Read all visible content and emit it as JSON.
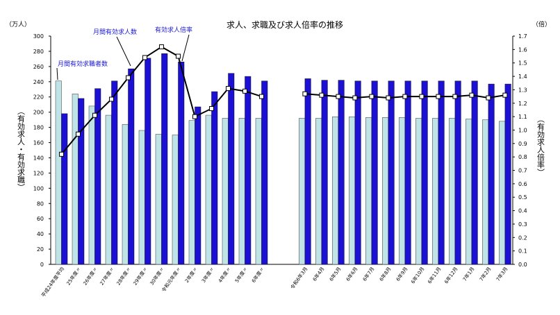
{
  "chart_data": {
    "type": "bar",
    "title": "求人、求職及び求人倍率の推移",
    "left_axis_unit": "（万人）",
    "right_axis_unit": "（倍）",
    "left_axis_label": "（有効求人・有効求職）",
    "right_axis_label": "（有効求人倍率）",
    "ylim_left": [
      0,
      300
    ],
    "ylim_right": [
      0,
      1.7
    ],
    "left_ticks": [
      "0",
      "20",
      "40",
      "60",
      "80",
      "100",
      "120",
      "140",
      "160",
      "180",
      "200",
      "220",
      "240",
      "260",
      "280",
      "300"
    ],
    "right_ticks": [
      "0.0",
      "0.1",
      "0.2",
      "0.3",
      "0.4",
      "0.5",
      "0.6",
      "0.7",
      "0.8",
      "0.9",
      "1.0",
      "1.1",
      "1.2",
      "1.3",
      "1.4",
      "1.5",
      "1.6",
      "1.7"
    ],
    "categories": [
      "平成24年度平均",
      "25年度〃",
      "26年度〃",
      "27年度〃",
      "28年度〃",
      "29年度〃",
      "30年度〃",
      "令和元年度〃",
      "2年度〃",
      "3年度〃",
      "4年度〃",
      "5年度〃",
      "6年度〃",
      "令和6年3月",
      "6年4月",
      "6年5月",
      "6年6月",
      "6年7月",
      "6年8月",
      "6年9月",
      "6年10月",
      "6年11月",
      "6年12月",
      "7年1月",
      "7年2月",
      "7年3月"
    ],
    "series": [
      {
        "name": "月間有効求職者数",
        "color": "#bfe3e6",
        "values": [
          241,
          224,
          208,
          196,
          184,
          176,
          171,
          170,
          189,
          196,
          192,
          192,
          192,
          192,
          192,
          194,
          194,
          193,
          193,
          193,
          192,
          192,
          192,
          191,
          190,
          188
        ]
      },
      {
        "name": "月間有効求人数",
        "color": "#1c10d4",
        "values": [
          198,
          218,
          231,
          241,
          257,
          271,
          277,
          266,
          207,
          227,
          251,
          247,
          241,
          244,
          242,
          242,
          241,
          241,
          241,
          241,
          241,
          241,
          241,
          241,
          237,
          237
        ]
      },
      {
        "name": "有効求人倍率",
        "color": "#000000",
        "values": [
          0.82,
          0.97,
          1.11,
          1.23,
          1.39,
          1.54,
          1.62,
          1.55,
          1.1,
          1.16,
          1.31,
          1.29,
          1.25,
          1.27,
          1.26,
          1.25,
          1.24,
          1.25,
          1.24,
          1.25,
          1.25,
          1.25,
          1.25,
          1.26,
          1.24,
          1.26
        ]
      }
    ],
    "annotations": {
      "jobseekers": "月間有効求職者数",
      "openings": "月間有効求人数",
      "ratio": "有効求人倍率"
    }
  }
}
